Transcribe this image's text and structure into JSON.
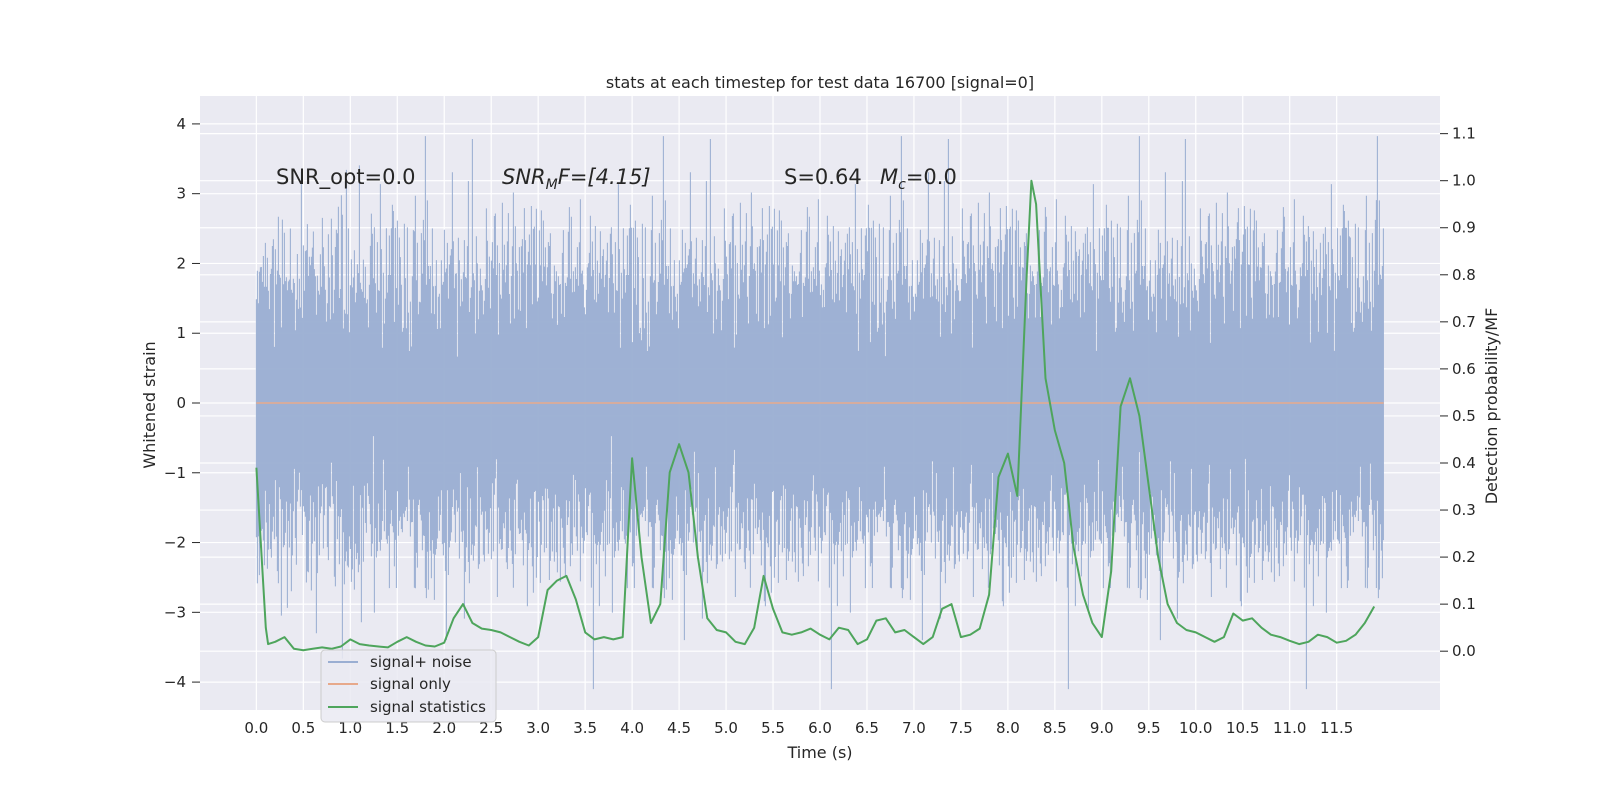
{
  "chart_data": {
    "type": "line",
    "title": "stats at each timestep for test data 16700 [signal=0]",
    "xlabel": "Time (s)",
    "ylabel": "Whitened strain",
    "y2label": "Detection probability/MF",
    "xlim": [
      -0.6,
      12.6
    ],
    "ylim": [
      -4.4,
      4.4
    ],
    "y2lim": [
      -0.125,
      1.18
    ],
    "x_ticks": [
      "0.0",
      "0.5",
      "1.0",
      "1.5",
      "2.0",
      "2.5",
      "3.0",
      "3.5",
      "4.0",
      "4.5",
      "5.0",
      "5.5",
      "6.0",
      "6.5",
      "7.0",
      "7.5",
      "8.0",
      "8.5",
      "9.0",
      "9.5",
      "10.0",
      "10.5",
      "11.0",
      "11.5"
    ],
    "y_ticks": [
      "4",
      "3",
      "2",
      "1",
      "0",
      "−1",
      "−2",
      "−3",
      "−4"
    ],
    "y2_ticks": [
      "1.1",
      "1.0",
      "0.9",
      "0.8",
      "0.7",
      "0.6",
      "0.5",
      "0.4",
      "0.3",
      "0.2",
      "0.1",
      "0.0"
    ],
    "grid": true,
    "legend_position": "bottom-left",
    "annotations": {
      "snr_opt": "SNR_opt=0.0",
      "snr_mf_base": "SNR",
      "snr_mf_sub": "M",
      "snr_mf_rest": "F=[4.15]",
      "s": "S=0.64",
      "mc_base": "M",
      "mc_sub": "c",
      "mc_rest": "=0.0"
    },
    "series": [
      {
        "name": "signal+ noise",
        "color": "#9aaed2",
        "axis": "left",
        "sample_rate_hz": 2048,
        "duration_s": 12.0,
        "rendering": "dense whitened noise, roughly N(0,1)"
      },
      {
        "name": "signal only",
        "color": "#e7a98b",
        "axis": "left",
        "values": "zero everywhere"
      },
      {
        "name": "signal statistics",
        "color": "#4ea55c",
        "axis": "right",
        "x": [
          0.0,
          0.1,
          0.125,
          0.2,
          0.3,
          0.4,
          0.5,
          0.6,
          0.7,
          0.8,
          0.9,
          1.0,
          1.1,
          1.2,
          1.3,
          1.4,
          1.5,
          1.6,
          1.7,
          1.8,
          1.9,
          2.0,
          2.1,
          2.2,
          2.3,
          2.4,
          2.5,
          2.6,
          2.7,
          2.8,
          2.9,
          3.0,
          3.1,
          3.2,
          3.3,
          3.4,
          3.5,
          3.6,
          3.7,
          3.8,
          3.9,
          4.0,
          4.1,
          4.2,
          4.3,
          4.4,
          4.5,
          4.6,
          4.7,
          4.8,
          4.9,
          5.0,
          5.1,
          5.2,
          5.3,
          5.4,
          5.5,
          5.6,
          5.7,
          5.8,
          5.9,
          6.0,
          6.1,
          6.2,
          6.3,
          6.4,
          6.5,
          6.6,
          6.7,
          6.8,
          6.9,
          7.0,
          7.1,
          7.2,
          7.3,
          7.4,
          7.5,
          7.6,
          7.7,
          7.8,
          7.9,
          8.0,
          8.1,
          8.2,
          8.25,
          8.3,
          8.4,
          8.5,
          8.6,
          8.7,
          8.8,
          8.9,
          9.0,
          9.1,
          9.2,
          9.3,
          9.4,
          9.5,
          9.6,
          9.7,
          9.8,
          9.9,
          10.0,
          10.1,
          10.2,
          10.3,
          10.4,
          10.5,
          10.6,
          10.7,
          10.8,
          10.9,
          11.0,
          11.1,
          11.2,
          11.3,
          11.4,
          11.5,
          11.6,
          11.7,
          11.8,
          11.9
        ],
        "values": [
          0.39,
          0.05,
          0.015,
          0.02,
          0.03,
          0.005,
          0.002,
          0.005,
          0.008,
          0.005,
          0.01,
          0.025,
          0.015,
          0.012,
          0.01,
          0.008,
          0.02,
          0.03,
          0.02,
          0.012,
          0.01,
          0.018,
          0.07,
          0.1,
          0.06,
          0.048,
          0.045,
          0.04,
          0.03,
          0.02,
          0.012,
          0.03,
          0.13,
          0.15,
          0.16,
          0.11,
          0.04,
          0.025,
          0.03,
          0.025,
          0.03,
          0.41,
          0.2,
          0.06,
          0.1,
          0.38,
          0.44,
          0.38,
          0.2,
          0.07,
          0.045,
          0.04,
          0.02,
          0.015,
          0.05,
          0.16,
          0.09,
          0.04,
          0.035,
          0.04,
          0.048,
          0.035,
          0.025,
          0.05,
          0.045,
          0.015,
          0.025,
          0.065,
          0.07,
          0.04,
          0.045,
          0.03,
          0.015,
          0.03,
          0.09,
          0.1,
          0.03,
          0.035,
          0.048,
          0.12,
          0.37,
          0.42,
          0.33,
          0.8,
          1.0,
          0.95,
          0.58,
          0.47,
          0.4,
          0.22,
          0.12,
          0.06,
          0.03,
          0.17,
          0.52,
          0.58,
          0.5,
          0.35,
          0.2,
          0.1,
          0.06,
          0.045,
          0.04,
          0.03,
          0.02,
          0.03,
          0.08,
          0.065,
          0.07,
          0.05,
          0.035,
          0.03,
          0.022,
          0.015,
          0.02,
          0.035,
          0.03,
          0.018,
          0.022,
          0.035,
          0.06,
          0.095
        ]
      }
    ]
  }
}
